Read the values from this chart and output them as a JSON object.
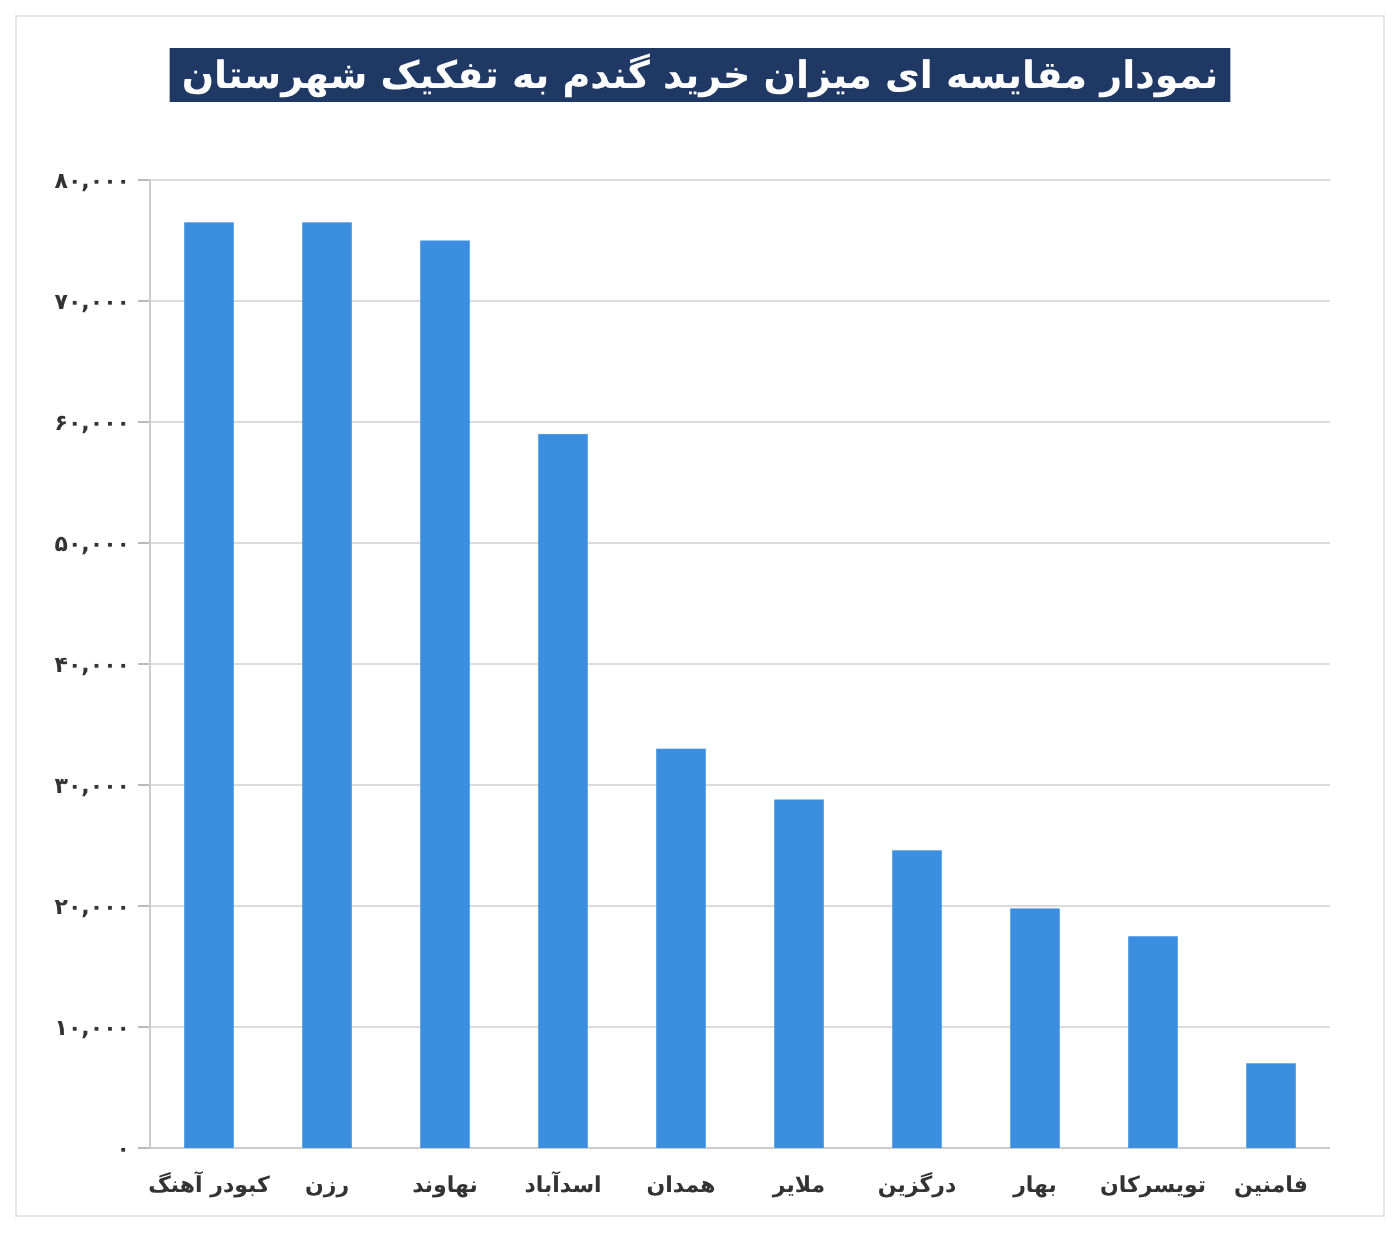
{
  "chart_data": {
    "type": "bar",
    "title": "نمودار مقایسه ای میزان خرید گندم به تفکیک شهرستان",
    "categories": [
      "کبودر آهنگ",
      "رزن",
      "نهاوند",
      "اسدآباد",
      "همدان",
      "ملایر",
      "درگزین",
      "بهار",
      "تویسرکان",
      "فامنین"
    ],
    "values": [
      76500,
      76500,
      75000,
      59000,
      33000,
      28800,
      24600,
      19800,
      17500,
      7000
    ],
    "color": "#3b8ee0",
    "ylim": [
      0,
      80000
    ],
    "yticks": [
      {
        "value": 0,
        "label": "۰"
      },
      {
        "value": 10000,
        "label": "۱۰,۰۰۰"
      },
      {
        "value": 20000,
        "label": "۲۰,۰۰۰"
      },
      {
        "value": 30000,
        "label": "۳۰,۰۰۰"
      },
      {
        "value": 40000,
        "label": "۴۰,۰۰۰"
      },
      {
        "value": 50000,
        "label": "۵۰,۰۰۰"
      },
      {
        "value": 60000,
        "label": "۶۰,۰۰۰"
      },
      {
        "value": 70000,
        "label": "۷۰,۰۰۰"
      },
      {
        "value": 80000,
        "label": "۸۰,۰۰۰"
      }
    ],
    "grid": "y"
  }
}
